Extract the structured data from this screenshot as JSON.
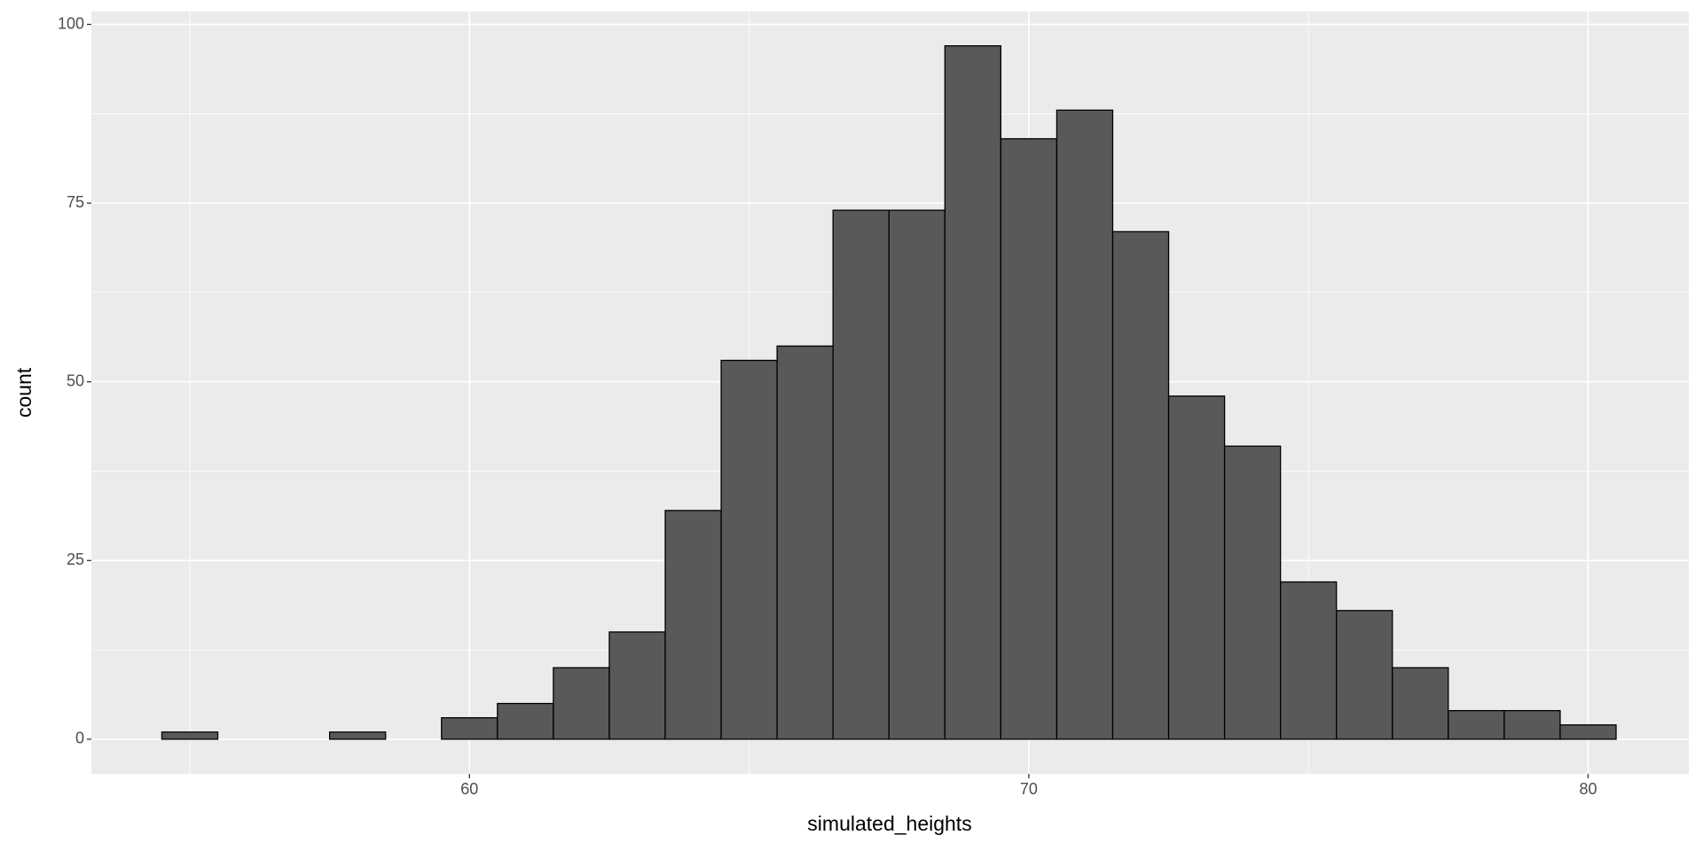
{
  "chart_data": {
    "type": "histogram",
    "x_label": "simulated_heights",
    "y_label": "count",
    "bins": [
      54.5,
      55.5,
      56.5,
      57.5,
      58.5,
      59.5,
      60.5,
      61.5,
      62.5,
      63.5,
      64.5,
      65.5,
      66.5,
      67.5,
      68.5,
      69.5,
      70.5,
      71.5,
      72.5,
      73.5,
      74.5,
      75.5,
      76.5,
      77.5,
      78.5,
      79.5,
      80.5
    ],
    "values": [
      1,
      0,
      0,
      1,
      0,
      3,
      5,
      10,
      15,
      32,
      53,
      55,
      74,
      74,
      97,
      84,
      88,
      71,
      48,
      41,
      22,
      18,
      10,
      4,
      4,
      2
    ],
    "color": "#595959",
    "edge_color": "#000000",
    "xlim": [
      53.24,
      81.8
    ],
    "ylim": [
      -4.85,
      101.8
    ],
    "xticks": [
      60,
      70,
      80
    ],
    "yticks": [
      0,
      25,
      50,
      75,
      100
    ],
    "x_minor_grid": [
      55,
      65,
      75
    ],
    "y_minor_grid": [
      12.5,
      37.5,
      62.5,
      87.5
    ],
    "grid": true,
    "panel_color": "#ebebeb"
  }
}
